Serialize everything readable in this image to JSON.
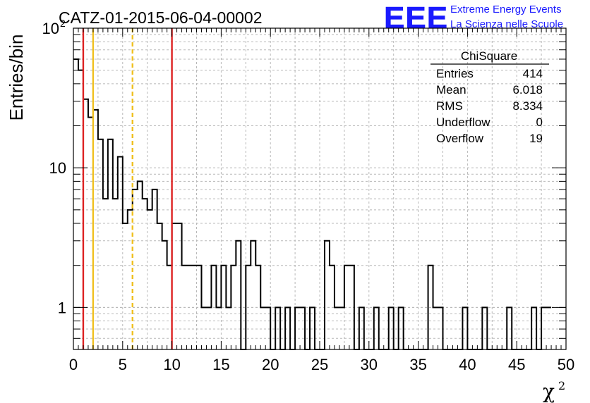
{
  "title": "CATZ-01-2015-06-04-00002",
  "logo": {
    "mark": "EEE",
    "line1": "Extreme Energy Events",
    "line2": "La Scienza nelle Scuole",
    "color": "#1a1aff"
  },
  "stats": {
    "title": "ChiSquare",
    "rows": [
      {
        "label": "Entries",
        "value": "414"
      },
      {
        "label": "Mean",
        "value": "6.018"
      },
      {
        "label": "RMS",
        "value": "8.334"
      },
      {
        "label": "Underflow",
        "value": "0"
      },
      {
        "label": "Overflow",
        "value": "19"
      }
    ]
  },
  "chart_data": {
    "type": "bar",
    "style": "step-histogram",
    "ylabel": "Entries/bin",
    "xlabel": "χ",
    "xlabel_superscript": "2",
    "xlim": [
      0,
      50
    ],
    "ylim": [
      0.5,
      100
    ],
    "yscale": "log",
    "grid": true,
    "bin_width": 0.5,
    "x_ticks": [
      "0",
      "5",
      "10",
      "15",
      "20",
      "25",
      "30",
      "35",
      "40",
      "45",
      "50"
    ],
    "y_ticks": [
      {
        "value": 1,
        "label": "1"
      },
      {
        "value": 10,
        "label": "10"
      },
      {
        "value": 100,
        "label": "10",
        "sup": "2"
      }
    ],
    "values": [
      60,
      50,
      31,
      23,
      26,
      16,
      6,
      16,
      6,
      12,
      4,
      5,
      7,
      8,
      6,
      5,
      7,
      4,
      3,
      2,
      4,
      4,
      2,
      2,
      2,
      2,
      1,
      1,
      2,
      1,
      2,
      1,
      2,
      3,
      0,
      2,
      3,
      2,
      1,
      1,
      0,
      1,
      0,
      1,
      0,
      1,
      1,
      0,
      1,
      0,
      0,
      3,
      2,
      1,
      1,
      2,
      2,
      0,
      1,
      0,
      0,
      1,
      0,
      0,
      1,
      0,
      1,
      0,
      0,
      0,
      0,
      0,
      2,
      1,
      1,
      0,
      0,
      0,
      0,
      1,
      0,
      0,
      0,
      1,
      0,
      0,
      0,
      0,
      1,
      0,
      0,
      0,
      0,
      1,
      0,
      1,
      1
    ],
    "markers": [
      {
        "x": 1,
        "color": "#dd2222",
        "style": "solid"
      },
      {
        "x": 2,
        "color": "#f0c020",
        "style": "solid"
      },
      {
        "x": 6,
        "color": "#f0c020",
        "style": "dashed"
      },
      {
        "x": 10,
        "color": "#dd2222",
        "style": "solid"
      }
    ]
  }
}
